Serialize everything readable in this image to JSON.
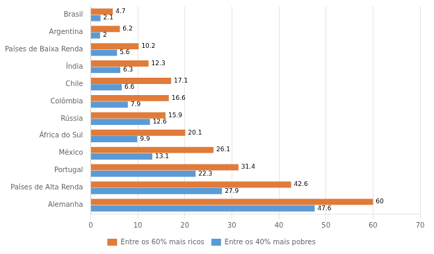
{
  "chart_data": {
    "type": "bar",
    "orientation": "horizontal",
    "categories": [
      "Alemanha",
      "Países de Alta Renda",
      "Portugal",
      "México",
      "África do Sul",
      "Rússia",
      "Colômbia",
      "Chile",
      "Índia",
      "Países de Baixa Renda",
      "Argentina",
      "Brasil"
    ],
    "series": [
      {
        "name": "Entre os 60% mais ricos",
        "color": "#E07B39",
        "values": [
          60.0,
          42.6,
          31.4,
          26.1,
          20.1,
          15.9,
          16.6,
          17.1,
          12.3,
          10.2,
          6.2,
          4.7
        ]
      },
      {
        "name": "Entre os 40% mais pobres",
        "color": "#5B9BD5",
        "values": [
          47.6,
          27.9,
          22.3,
          13.1,
          9.9,
          12.6,
          7.9,
          6.6,
          6.3,
          5.6,
          2.0,
          2.1
        ]
      }
    ],
    "xlim": [
      0,
      70
    ],
    "xticks": [
      0,
      10,
      20,
      30,
      40,
      50,
      60,
      70
    ],
    "grid": true,
    "data_labels": true,
    "legend": "bottom"
  }
}
